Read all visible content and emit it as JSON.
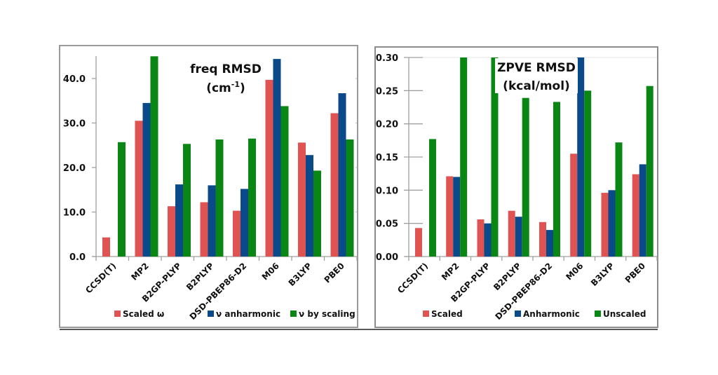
{
  "chart_data": [
    {
      "type": "bar",
      "title": "freq RMSD",
      "title_unit": "(cm",
      "title_unit_sup": "-1",
      "title_unit_end": ")",
      "xlabel": "",
      "ylabel": "",
      "categories": [
        "CCSD(T)",
        "MP2",
        "B2GP-PLYP",
        "B2PLYP",
        "DSD-PBEP86-D2",
        "M06",
        "B3LYP",
        "PBE0"
      ],
      "series": [
        {
          "name": "Scaled ω",
          "color": "#e05353",
          "values": [
            4.3,
            30.5,
            11.3,
            12.2,
            10.3,
            39.7,
            25.6,
            32.2
          ]
        },
        {
          "name": "ν anharmonic",
          "color": "#0b4a8a",
          "values": [
            null,
            34.5,
            16.2,
            16.0,
            15.2,
            44.4,
            22.8,
            36.7
          ]
        },
        {
          "name": "ν by scaling",
          "color": "#0a8614",
          "values": [
            25.7,
            45.2,
            25.3,
            26.3,
            26.5,
            33.8,
            19.3,
            26.3
          ]
        }
      ],
      "ylim": [
        0,
        45
      ],
      "yticks": [
        0,
        10,
        20,
        30,
        40
      ],
      "ytick_labels": [
        "0.0",
        "10.0",
        "20.0",
        "30.0",
        "40.0"
      ],
      "grid": false,
      "legend_position": "bottom"
    },
    {
      "type": "bar",
      "title": "ZPVE RMSD",
      "title_unit": "(kcal/mol)",
      "xlabel": "",
      "ylabel": "",
      "categories": [
        "CCSD(T)",
        "MP2",
        "B2GP-PLYP",
        "B2PLYP",
        "DSD-PBEP86-D2",
        "M06",
        "B3LYP",
        "PBE0"
      ],
      "series": [
        {
          "name": "Scaled",
          "color": "#e05353",
          "values": [
            0.043,
            0.121,
            0.056,
            0.069,
            0.052,
            0.155,
            0.096,
            0.124
          ]
        },
        {
          "name": "Anharmonic",
          "color": "#0b4a8a",
          "values": [
            null,
            0.12,
            0.05,
            0.06,
            0.04,
            0.3,
            0.1,
            0.139
          ]
        },
        {
          "name": "Unscaled",
          "color": "#0a8614",
          "values": [
            0.177,
            0.3,
            0.3,
            0.239,
            0.233,
            0.25,
            0.172,
            0.257
          ]
        }
      ],
      "ylim": [
        0,
        0.3
      ],
      "yticks": [
        0,
        0.05,
        0.1,
        0.15,
        0.2,
        0.25,
        0.3
      ],
      "ytick_labels": [
        "0.00",
        "0.05",
        "0.10",
        "0.15",
        "0.20",
        "0.25",
        "0.30"
      ],
      "grid": false,
      "legend_position": "bottom"
    }
  ]
}
